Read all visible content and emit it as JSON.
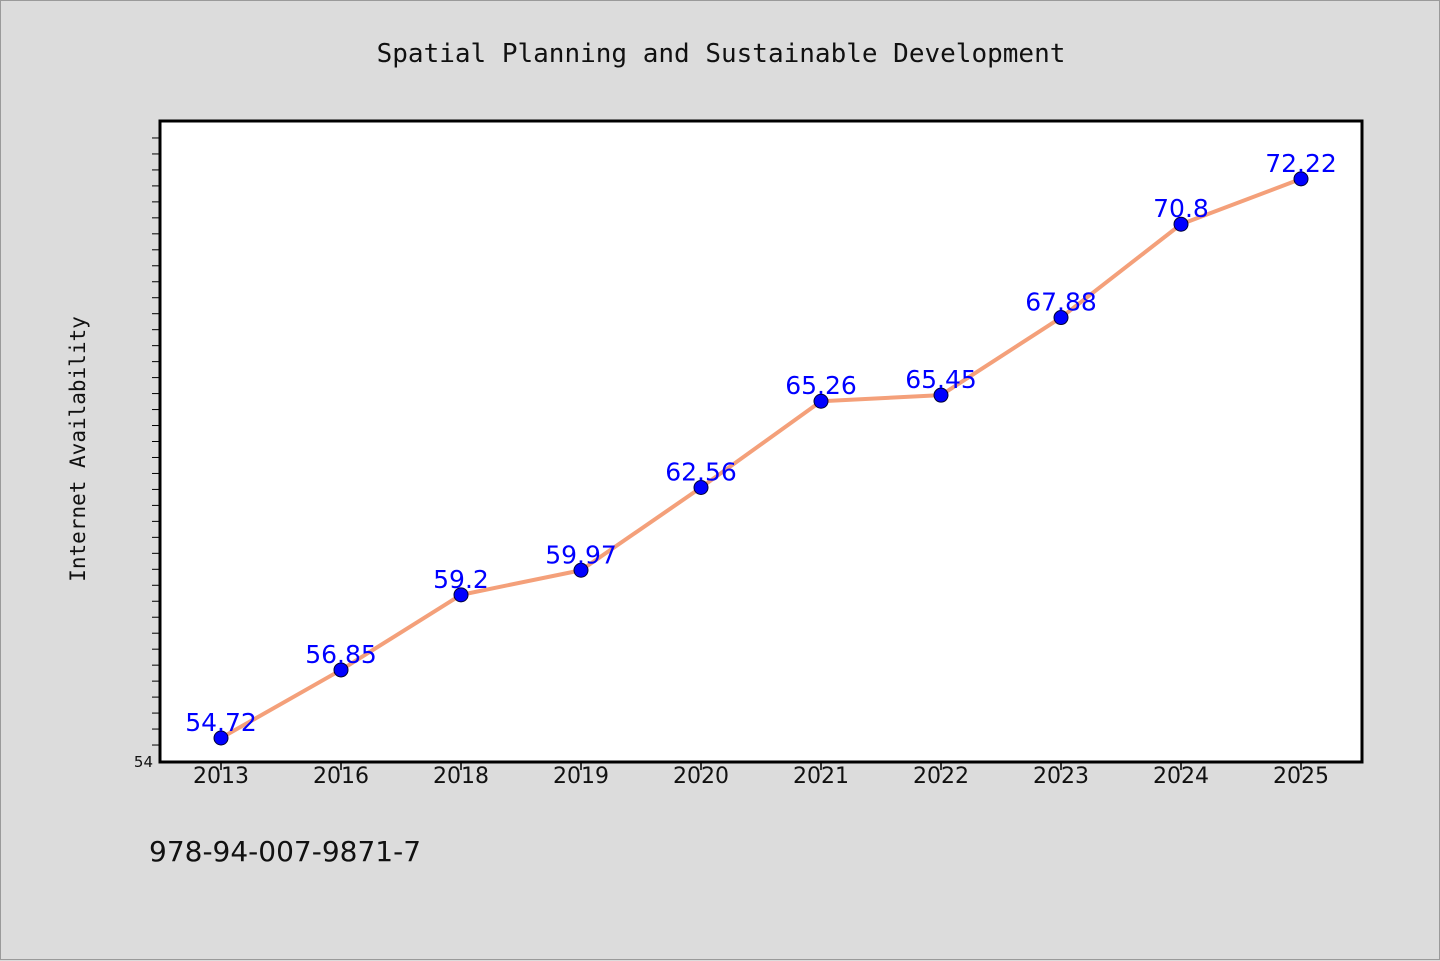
{
  "chart_data": {
    "type": "line",
    "title": "Spatial Planning and Sustainable Development",
    "xlabel": "",
    "ylabel": "Internet Availability",
    "categories": [
      "2013",
      "2016",
      "2018",
      "2019",
      "2020",
      "2021",
      "2022",
      "2023",
      "2024",
      "2025"
    ],
    "values": [
      54.72,
      56.85,
      59.2,
      59.97,
      62.56,
      65.26,
      65.45,
      67.88,
      70.8,
      72.22
    ],
    "data_labels": [
      "54.72",
      "56.85",
      "59.2",
      "59.97",
      "62.56",
      "65.26",
      "65.45",
      "67.88",
      "70.8",
      "72.22"
    ],
    "ylim": [
      54,
      74
    ],
    "y_tick_label": "54",
    "grid": false,
    "legend": "none",
    "line_color": "#f4a07a",
    "marker_color": "#0000ff"
  },
  "footer": {
    "isbn": "978-94-007-9871-7"
  }
}
